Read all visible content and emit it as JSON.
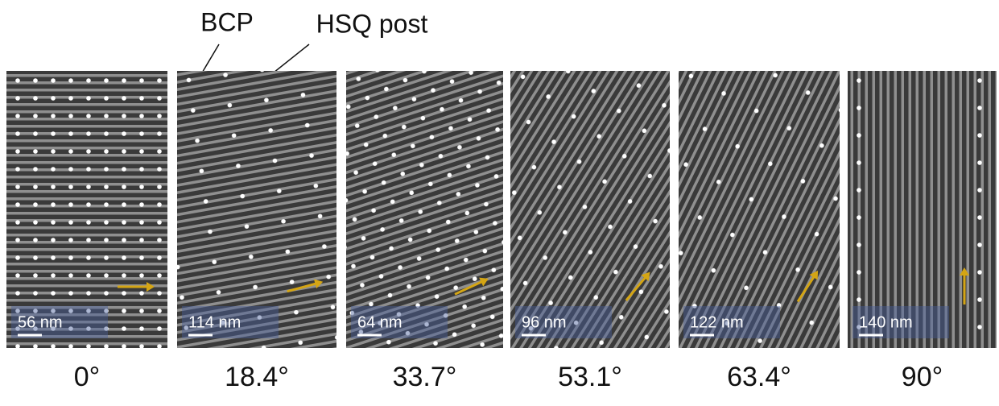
{
  "labels": {
    "bcp": "BCP",
    "hsq": "HSQ post"
  },
  "panels": [
    {
      "scale": "56 nm",
      "angle": "0°"
    },
    {
      "scale": "114 nm",
      "angle": "18.4°"
    },
    {
      "scale": "64 nm",
      "angle": "33.7°"
    },
    {
      "scale": "96 nm",
      "angle": "53.1°"
    },
    {
      "scale": "122 nm",
      "angle": "63.4°"
    },
    {
      "scale": "140 nm",
      "angle": "90°"
    }
  ]
}
